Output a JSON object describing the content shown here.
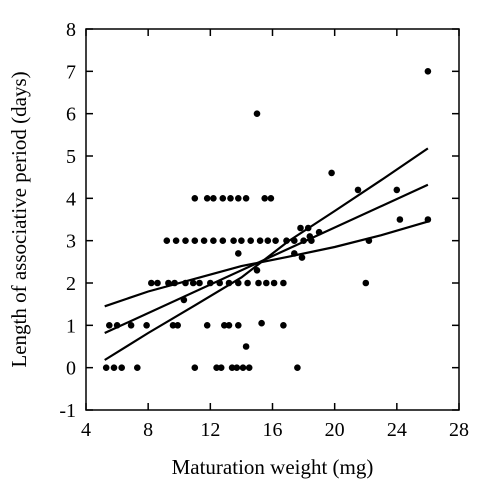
{
  "chart_data": {
    "type": "scatter",
    "title": "",
    "xlabel": "Maturation weight (mg)",
    "ylabel": "Length of associative period (days)",
    "xlim": [
      4,
      28
    ],
    "ylim": [
      -1,
      8
    ],
    "x_ticks": [
      "4",
      "8",
      "12",
      "16",
      "20",
      "24",
      "28"
    ],
    "y_ticks": [
      "-1",
      "0",
      "1",
      "2",
      "3",
      "4",
      "5",
      "6",
      "7",
      "8"
    ],
    "grid": false,
    "legend": "none",
    "points": [
      [
        26.0,
        7.0
      ],
      [
        15.0,
        6.0
      ],
      [
        19.8,
        4.6
      ],
      [
        21.5,
        4.2
      ],
      [
        24.0,
        4.2
      ],
      [
        11.0,
        4.0
      ],
      [
        11.8,
        4.0
      ],
      [
        12.2,
        4.0
      ],
      [
        12.8,
        4.0
      ],
      [
        13.3,
        4.0
      ],
      [
        13.8,
        4.0
      ],
      [
        14.3,
        4.0
      ],
      [
        15.5,
        4.0
      ],
      [
        15.9,
        4.0
      ],
      [
        24.2,
        3.5
      ],
      [
        26.0,
        3.5
      ],
      [
        9.2,
        3.0
      ],
      [
        9.8,
        3.0
      ],
      [
        10.4,
        3.0
      ],
      [
        11.0,
        3.0
      ],
      [
        11.6,
        3.0
      ],
      [
        12.2,
        3.0
      ],
      [
        12.8,
        3.0
      ],
      [
        13.5,
        3.0
      ],
      [
        14.0,
        3.0
      ],
      [
        14.6,
        3.0
      ],
      [
        15.2,
        3.0
      ],
      [
        15.7,
        3.0
      ],
      [
        16.2,
        3.0
      ],
      [
        16.9,
        3.0
      ],
      [
        17.4,
        3.0
      ],
      [
        18.0,
        3.0
      ],
      [
        18.5,
        3.0
      ],
      [
        22.2,
        3.0
      ],
      [
        17.8,
        3.3
      ],
      [
        18.3,
        3.3
      ],
      [
        19.0,
        3.2
      ],
      [
        18.4,
        3.1
      ],
      [
        13.8,
        2.7
      ],
      [
        17.4,
        2.7
      ],
      [
        17.9,
        2.6
      ],
      [
        15.0,
        2.3
      ],
      [
        8.2,
        2.0
      ],
      [
        8.6,
        2.0
      ],
      [
        9.3,
        2.0
      ],
      [
        9.7,
        2.0
      ],
      [
        10.4,
        2.0
      ],
      [
        10.9,
        2.0
      ],
      [
        11.3,
        2.0
      ],
      [
        12.0,
        2.0
      ],
      [
        12.6,
        2.0
      ],
      [
        13.2,
        2.0
      ],
      [
        13.8,
        2.0
      ],
      [
        14.4,
        2.0
      ],
      [
        15.1,
        2.0
      ],
      [
        15.6,
        2.0
      ],
      [
        16.1,
        2.0
      ],
      [
        16.7,
        2.0
      ],
      [
        22.0,
        2.0
      ],
      [
        10.3,
        1.6
      ],
      [
        14.3,
        0.5
      ],
      [
        5.5,
        1.0
      ],
      [
        6.0,
        1.0
      ],
      [
        6.9,
        1.0
      ],
      [
        7.9,
        1.0
      ],
      [
        9.6,
        1.0
      ],
      [
        9.9,
        1.0
      ],
      [
        11.8,
        1.0
      ],
      [
        12.9,
        1.0
      ],
      [
        13.2,
        1.0
      ],
      [
        13.8,
        1.0
      ],
      [
        15.3,
        1.05
      ],
      [
        16.7,
        1.0
      ],
      [
        5.3,
        0.0
      ],
      [
        5.8,
        0.0
      ],
      [
        6.3,
        0.0
      ],
      [
        7.3,
        0.0
      ],
      [
        11.0,
        0.0
      ],
      [
        12.4,
        0.0
      ],
      [
        12.7,
        0.0
      ],
      [
        13.4,
        0.0
      ],
      [
        13.7,
        0.0
      ],
      [
        14.1,
        0.0
      ],
      [
        14.5,
        0.0
      ],
      [
        17.6,
        0.0
      ]
    ],
    "lines": [
      {
        "name": "",
        "points": [
          [
            5.2,
            0.82
          ],
          [
            26.0,
            4.32
          ]
        ]
      },
      {
        "name": "",
        "points": [
          [
            5.2,
            1.45
          ],
          [
            8.0,
            1.8
          ],
          [
            11.0,
            2.1
          ],
          [
            14.0,
            2.4
          ],
          [
            17.0,
            2.62
          ],
          [
            20.0,
            2.85
          ],
          [
            23.0,
            3.13
          ],
          [
            26.0,
            3.45
          ]
        ]
      },
      {
        "name": "",
        "points": [
          [
            5.2,
            0.18
          ],
          [
            8.0,
            0.82
          ],
          [
            11.0,
            1.47
          ],
          [
            14.0,
            2.13
          ],
          [
            17.0,
            2.98
          ],
          [
            20.0,
            3.7
          ],
          [
            23.0,
            4.43
          ],
          [
            26.0,
            5.18
          ]
        ]
      }
    ]
  }
}
